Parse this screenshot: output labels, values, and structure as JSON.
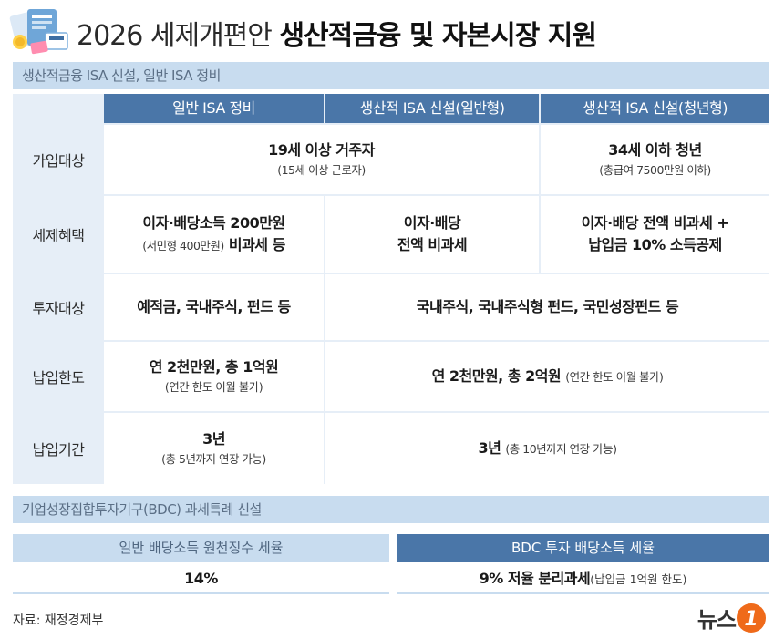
{
  "title": {
    "normal": "2026 세제개편안",
    "bold": "생산적금융 및 자본시장 지원"
  },
  "section1": {
    "label": "생산적금융 ISA 신설, 일반 ISA 정비"
  },
  "columns": [
    "일반 ISA 정비",
    "생산적 ISA 신설(일반형)",
    "생산적 ISA 신설(청년형)"
  ],
  "rows": {
    "eligibility": {
      "label": "가입대상",
      "general_young_main": "19세 이상 거주자",
      "general_young_sub": "(15세 이상 근로자)",
      "youth_main": "34세 이하 청년",
      "youth_sub": "(총급여 7500만원 이하)"
    },
    "tax_benefit": {
      "label": "세제혜택",
      "general_main": "이자·배당소득 200만원",
      "general_sub": "(서민형 400만원)",
      "general_main2": "비과세 등",
      "productive_line1": "이자·배당",
      "productive_line2": "전액 비과세",
      "youth_line1": "이자·배당 전액 비과세 +",
      "youth_line2": "납입금 10% 소득공제"
    },
    "investment": {
      "label": "투자대상",
      "general_main": "예적금, 국내주식, 펀드 등",
      "productive_main": "국내주식, 국내주식형 펀드, 국민성장펀드 등"
    },
    "limit": {
      "label": "납입한도",
      "general_main": "연 2천만원, 총 1억원",
      "general_sub": "(연간 한도 이월 불가)",
      "productive_main": "연 2천만원, 총 2억원",
      "productive_sub": "(연간 한도 이월 불가)"
    },
    "period": {
      "label": "납입기간",
      "general_main": "3년",
      "general_sub": "(총 5년까지 연장 가능)",
      "productive_main": "3년",
      "productive_sub": "(총 10년까지 연장 가능)"
    }
  },
  "section2": {
    "label": "기업성장집합투자기구(BDC) 과세특례 신설"
  },
  "bdc": {
    "left_head": "일반 배당소득 원천징수 세율",
    "left_value": "14%",
    "right_head": "BDC 투자 배당소득 세율",
    "right_main": "9% 저율 분리과세",
    "right_sub": "(납입금 1억원 한도)"
  },
  "footer": {
    "source": "자료: 재정경제부",
    "brand": "뉴스",
    "brand_mark": "1"
  },
  "colors": {
    "accent_blue": "#4a76a8",
    "light_blue": "#c8dcef",
    "row_bg": "#e6eef7",
    "brand_orange": "#ef6a1a"
  }
}
